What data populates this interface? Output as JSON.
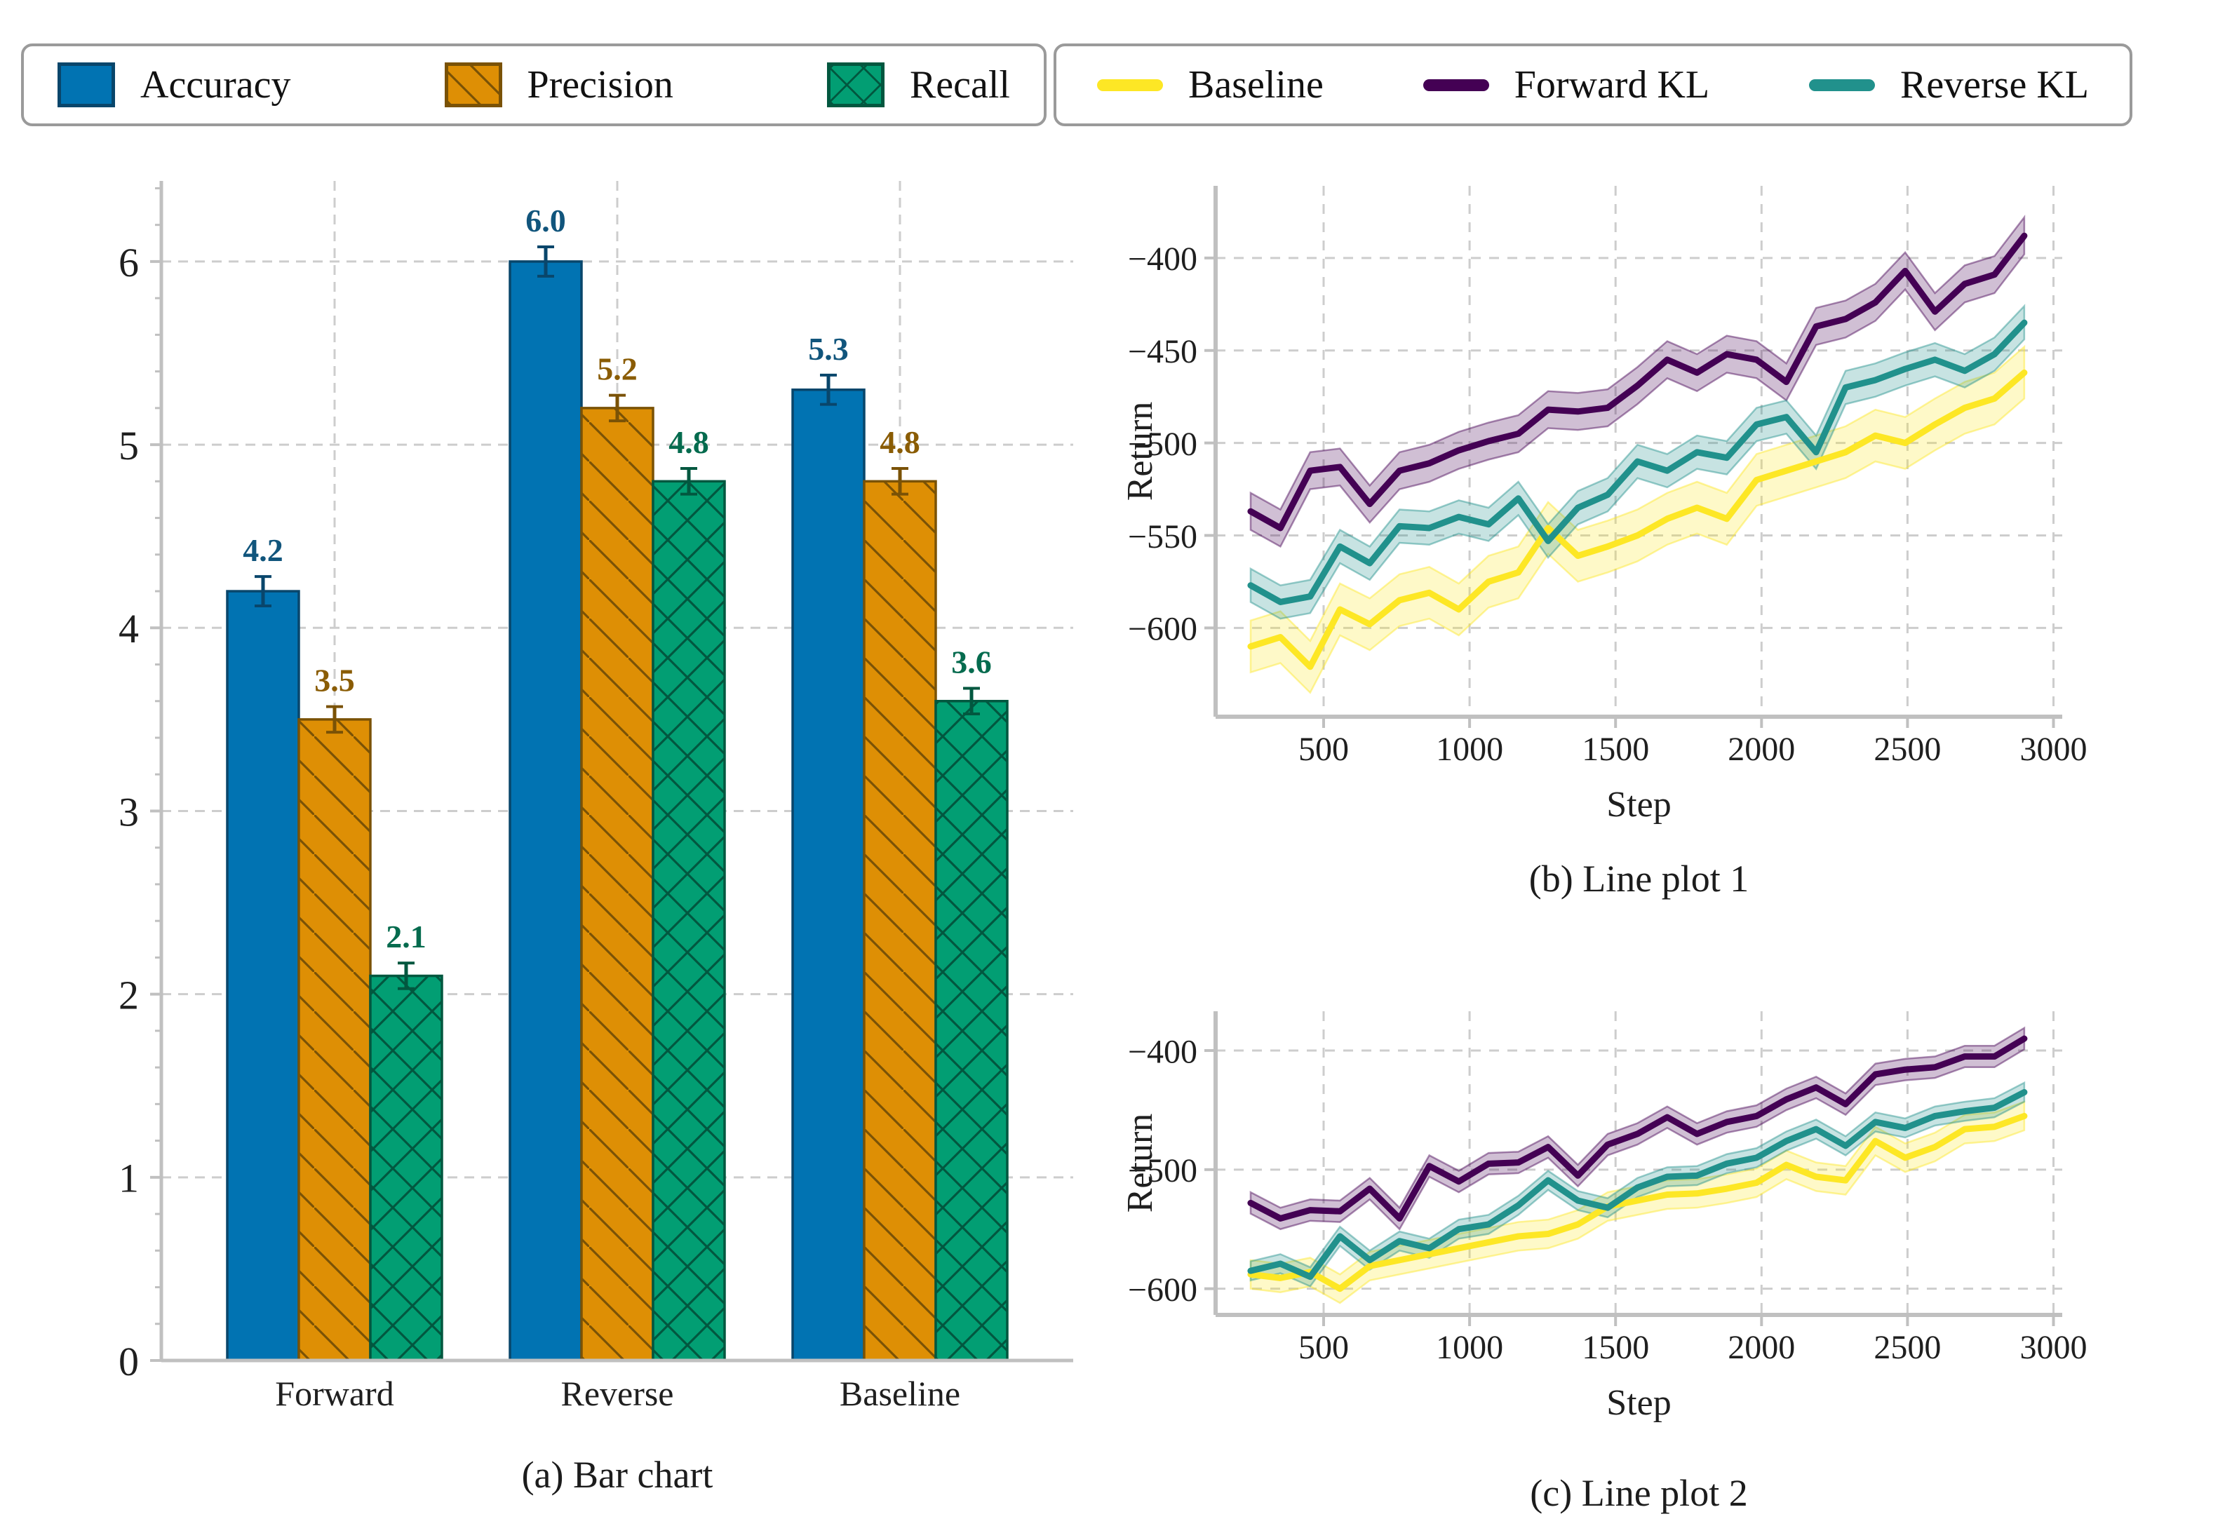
{
  "figure": {
    "legend_bar": {
      "items": [
        {
          "label": "Accuracy",
          "fill": "#0173b2",
          "edge": "#09466b",
          "hatch": "none"
        },
        {
          "label": "Precision",
          "fill": "#de8f05",
          "edge": "#7a5206",
          "hatch": "diag"
        },
        {
          "label": "Recall",
          "fill": "#029e73",
          "edge": "#02573f",
          "hatch": "cross"
        }
      ]
    },
    "legend_lines": {
      "items": [
        {
          "label": "Baseline",
          "color": "#fde725"
        },
        {
          "label": "Forward KL",
          "color": "#440154"
        },
        {
          "label": "Reverse KL",
          "color": "#21918c"
        }
      ]
    },
    "captions": {
      "a": "(a) Bar chart",
      "b": "(b) Line plot 1",
      "c": "(c) Line plot 2"
    }
  },
  "chart_data": [
    {
      "type": "bar",
      "title": "(a) Bar chart",
      "categories": [
        "Forward",
        "Reverse",
        "Baseline"
      ],
      "ylim": [
        0,
        6.44
      ],
      "yticks": [
        0,
        1,
        2,
        3,
        4,
        5,
        6
      ],
      "grid": true,
      "series": [
        {
          "name": "Accuracy",
          "values": [
            4.2,
            6.0,
            5.3
          ],
          "errors": [
            0.08,
            0.08,
            0.08
          ],
          "fill": "#0173b2",
          "edge": "#09466b",
          "label_color": "#11557c",
          "hatch": "none"
        },
        {
          "name": "Precision",
          "values": [
            3.5,
            5.2,
            4.8
          ],
          "errors": [
            0.07,
            0.07,
            0.07
          ],
          "fill": "#de8f05",
          "edge": "#7a5206",
          "label_color": "#8a5c04",
          "hatch": "diag"
        },
        {
          "name": "Recall",
          "values": [
            2.1,
            4.8,
            3.6
          ],
          "errors": [
            0.07,
            0.07,
            0.07
          ],
          "fill": "#029e73",
          "edge": "#02573f",
          "label_color": "#056b4e",
          "hatch": "cross"
        }
      ]
    },
    {
      "type": "line",
      "title": "(b) Line plot 1",
      "xlabel": "Step",
      "ylabel": "Return",
      "xlim": [
        130,
        3030
      ],
      "ylim": [
        -648,
        -361
      ],
      "xticks": [
        500,
        1000,
        1500,
        2000,
        2500,
        3000
      ],
      "yticks": [
        -400,
        -450,
        -500,
        -550,
        -600
      ],
      "legend_position": "top-outside",
      "grid": true,
      "x": [
        250,
        352,
        454,
        556,
        658,
        760,
        862,
        963,
        1065,
        1167,
        1269,
        1371,
        1473,
        1575,
        1677,
        1779,
        1881,
        1983,
        2085,
        2187,
        2288,
        2390,
        2492,
        2594,
        2696,
        2798,
        2900
      ],
      "series": [
        {
          "name": "Baseline",
          "color": "#fde725",
          "band": 14,
          "values": [
            -610,
            -605,
            -621,
            -590,
            -598,
            -585,
            -581,
            -590,
            -575,
            -570,
            -546,
            -561,
            -556,
            -550,
            -541,
            -535,
            -541,
            -520,
            -515,
            -510,
            -505,
            -496,
            -500,
            -490,
            -481,
            -476,
            -462
          ]
        },
        {
          "name": "Forward KL",
          "color": "#440154",
          "band": 10,
          "values": [
            -537,
            -546,
            -515,
            -513,
            -533,
            -515,
            -511,
            -504,
            -499,
            -495,
            -482,
            -483,
            -481,
            -469,
            -455,
            -462,
            -452,
            -455,
            -467,
            -437,
            -433,
            -424,
            -407,
            -429,
            -414,
            -409,
            -388
          ]
        },
        {
          "name": "Reverse KL",
          "color": "#21918c",
          "band": 9,
          "values": [
            -577,
            -586,
            -583,
            -556,
            -565,
            -545,
            -546,
            -540,
            -544,
            -530,
            -553,
            -535,
            -528,
            -510,
            -515,
            -505,
            -508,
            -490,
            -486,
            -505,
            -470,
            -466,
            -460,
            -455,
            -461,
            -452,
            -435
          ]
        }
      ]
    },
    {
      "type": "line",
      "title": "(c) Line plot 2",
      "xlabel": "Step",
      "ylabel": "Return",
      "xlim": [
        130,
        3030
      ],
      "ylim": [
        -622,
        -367
      ],
      "xticks": [
        500,
        1000,
        1500,
        2000,
        2500,
        3000
      ],
      "yticks": [
        -400,
        -500,
        -600
      ],
      "grid": true,
      "x": [
        250,
        352,
        454,
        556,
        658,
        760,
        862,
        963,
        1065,
        1167,
        1269,
        1371,
        1473,
        1575,
        1677,
        1779,
        1881,
        1983,
        2085,
        2187,
        2288,
        2390,
        2492,
        2594,
        2696,
        2798,
        2900
      ],
      "series": [
        {
          "name": "Baseline",
          "color": "#fde725",
          "band": 12,
          "values": [
            -588,
            -591,
            -586,
            -600,
            -581,
            -576,
            -571,
            -566,
            -561,
            -556,
            -554,
            -546,
            -531,
            -526,
            -521,
            -520,
            -516,
            -511,
            -496,
            -506,
            -509,
            -476,
            -490,
            -481,
            -466,
            -464,
            -455
          ]
        },
        {
          "name": "Forward KL",
          "color": "#440154",
          "band": 9,
          "values": [
            -528,
            -541,
            -534,
            -535,
            -516,
            -541,
            -497,
            -510,
            -495,
            -494,
            -481,
            -505,
            -479,
            -470,
            -456,
            -470,
            -460,
            -455,
            -441,
            -431,
            -445,
            -420,
            -416,
            -414,
            -405,
            -405,
            -390
          ]
        },
        {
          "name": "Reverse KL",
          "color": "#21918c",
          "band": 8,
          "values": [
            -585,
            -579,
            -590,
            -556,
            -576,
            -560,
            -566,
            -550,
            -546,
            -530,
            -509,
            -526,
            -532,
            -515,
            -506,
            -505,
            -495,
            -490,
            -476,
            -466,
            -480,
            -460,
            -465,
            -455,
            -451,
            -448,
            -435
          ]
        }
      ]
    }
  ]
}
